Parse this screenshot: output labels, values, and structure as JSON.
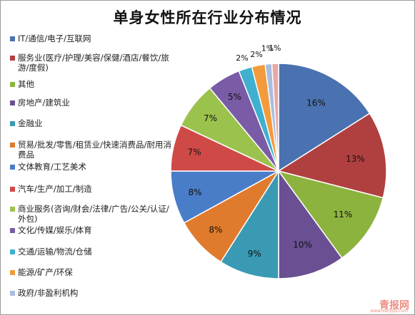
{
  "chart_data": {
    "type": "pie",
    "title": "单身女性所在行业分布情况",
    "series": [
      {
        "name": "IT/通信/电子/互联网",
        "value": 16,
        "label": "16%",
        "color": "#4a72b0"
      },
      {
        "name": "服务业(医疗/护理/美容/保健/酒店/餐饮/旅游/度假)",
        "value": 13,
        "label": "13%",
        "color": "#b04040"
      },
      {
        "name": "其他",
        "value": 11,
        "label": "11%",
        "color": "#8db33f"
      },
      {
        "name": "房地产/建筑业",
        "value": 10,
        "label": "10%",
        "color": "#6a4f92"
      },
      {
        "name": "金融业",
        "value": 9,
        "label": "9%",
        "color": "#3a9ab4"
      },
      {
        "name": "贸易/批发/零售/租赁业/快速消费品/耐用消费品",
        "value": 8,
        "label": "8%",
        "color": "#e07b2d"
      },
      {
        "name": "文体教育/工艺美术",
        "value": 8,
        "label": "8%",
        "color": "#4a7dc8"
      },
      {
        "name": "汽车/生产/加工/制造",
        "value": 7,
        "label": "7%",
        "color": "#cf4a46"
      },
      {
        "name": "商业服务(咨询/财会/法律/广告/公关/认证/外包)",
        "value": 7,
        "label": "7%",
        "color": "#9cc24e"
      },
      {
        "name": "文化/传媒/娱乐/体育",
        "value": 5,
        "label": "5%",
        "color": "#7a5ba6"
      },
      {
        "name": "交通/运输/物流/仓储",
        "value": 2,
        "label": "2%",
        "color": "#3fb0cf"
      },
      {
        "name": "能源/矿产/环保",
        "value": 2,
        "label": "2%",
        "color": "#f39a3c"
      },
      {
        "name": "政府/非盈利机构",
        "value": 1,
        "label": "1%",
        "color": "#a9bde0"
      },
      {
        "name": "",
        "value": 1,
        "label": "1%",
        "color": "#e8a8a6"
      }
    ],
    "legend_position": "left"
  },
  "legend_items": [
    {
      "label": "IT/通信/电子/互联网",
      "color": "#4a72b0"
    },
    {
      "label": "服务业(医疗/护理/美容/保健/酒店/餐饮/旅游/度假)",
      "color": "#b04040"
    },
    {
      "label": "其他",
      "color": "#8db33f"
    },
    {
      "label": "房地产/建筑业",
      "color": "#6a4f92"
    },
    {
      "label": "金融业",
      "color": "#3a9ab4"
    },
    {
      "label": "贸易/批发/零售/租赁业/快速消费品/耐用消费品",
      "color": "#e07b2d"
    },
    {
      "label": "文体教育/工艺美术",
      "color": "#4a7dc8"
    },
    {
      "label": "汽车/生产/加工/制造",
      "color": "#cf4a46"
    },
    {
      "label": "商业服务(咨询/财会/法律/广告/公关/认证/外包)",
      "color": "#9cc24e"
    },
    {
      "label": "文化/传媒/娱乐/体育",
      "color": "#7a5ba6"
    },
    {
      "label": "交通/运输/物流/仓储",
      "color": "#3fb0cf"
    },
    {
      "label": "能源/矿产/环保",
      "color": "#f39a3c"
    },
    {
      "label": "政府/非盈利机构",
      "color": "#a9bde0"
    }
  ],
  "watermark": {
    "text": "青报网",
    "url": "www.dailyqd.com"
  }
}
